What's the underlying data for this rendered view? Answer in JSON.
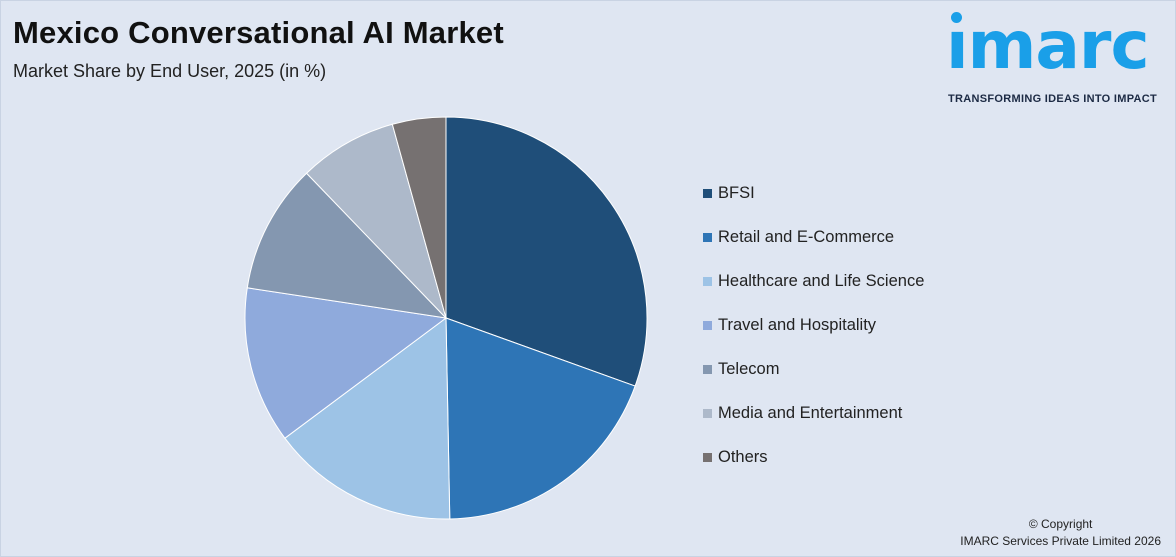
{
  "header": {
    "title": "Mexico Conversational AI Market",
    "subtitle": "Market Share by End User, 2025 (in %)"
  },
  "logo": {
    "word": "ımarc",
    "tagline": "TRANSFORMING IDEAS INTO IMPACT",
    "color": "#1a9fe8"
  },
  "footer": {
    "copyright_line1": "© Copyright",
    "copyright_line2": "IMARC Services Private Limited 2026"
  },
  "chart_data": {
    "type": "pie",
    "title": "Mexico Conversational AI Market",
    "subtitle": "Market Share by End User, 2025 (in %)",
    "legend_position": "right",
    "start_angle": "12 o'clock, clockwise",
    "slices": [
      {
        "label": "BFSI",
        "value": 30.5,
        "color": "#1f4e79"
      },
      {
        "label": "Retail and E-Commerce",
        "value": 19.2,
        "color": "#2e75b6"
      },
      {
        "label": "Healthcare and Life Science",
        "value": 15.1,
        "color": "#9dc3e6"
      },
      {
        "label": "Travel and Hospitality",
        "value": 12.6,
        "color": "#8faadc"
      },
      {
        "label": "Telecom",
        "value": 10.4,
        "color": "#8497b0"
      },
      {
        "label": "Media and Entertainment",
        "value": 7.9,
        "color": "#adb9ca"
      },
      {
        "label": "Others",
        "value": 4.3,
        "color": "#767171"
      }
    ]
  }
}
